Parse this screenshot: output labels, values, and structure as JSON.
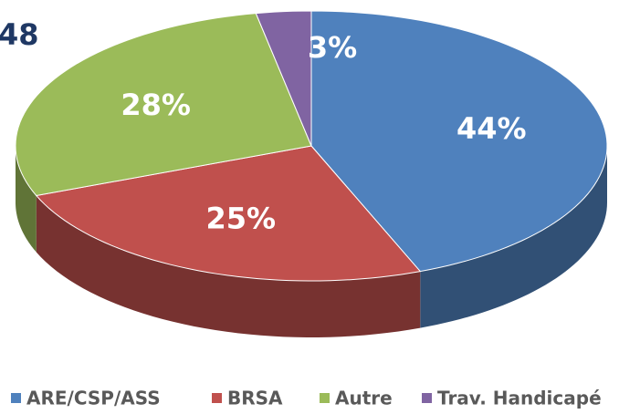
{
  "chart_data": {
    "type": "pie",
    "title": "48",
    "categories": [
      "ARE/CSP/ASS",
      "BRSA",
      "Autre",
      "Trav. Handicapé"
    ],
    "values": [
      44,
      25,
      28,
      3
    ],
    "value_labels": [
      "44%",
      "25%",
      "28%",
      "3%"
    ],
    "colors": [
      "#4f81bd",
      "#c0504d",
      "#9bbb59",
      "#8064a2"
    ],
    "legend": "bottom"
  }
}
